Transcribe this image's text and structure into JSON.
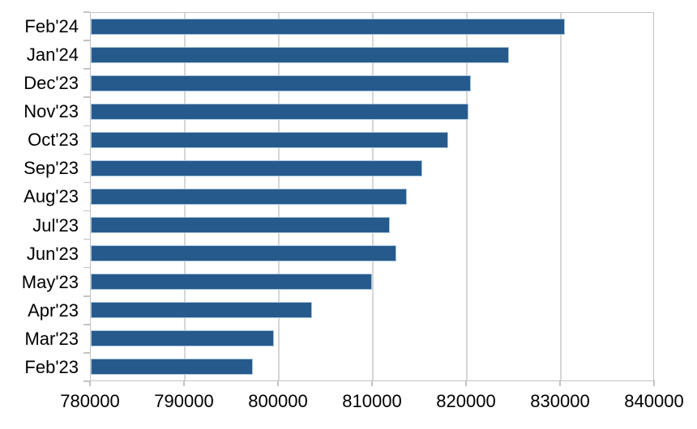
{
  "chart_data": {
    "type": "bar",
    "orientation": "horizontal",
    "title": "",
    "xlabel": "",
    "ylabel": "",
    "categories": [
      "Feb'24",
      "Jan'24",
      "Dec'23",
      "Nov'23",
      "Oct'23",
      "Sep'23",
      "Aug'23",
      "Jul'23",
      "Jun'23",
      "May'23",
      "Apr'23",
      "Mar'23",
      "Feb'23"
    ],
    "values": [
      830400,
      824500,
      820400,
      820200,
      818000,
      815300,
      813600,
      811800,
      812500,
      809900,
      803500,
      799500,
      797200
    ],
    "xlim": [
      780000,
      840000
    ],
    "x_tick_labels": [
      "780000",
      "790000",
      "800000",
      "810000",
      "820000",
      "830000",
      "840000"
    ],
    "grid": "vertical-gridlines-on",
    "legend": "none",
    "colors": {
      "bar_fill": "#265A8C",
      "bar_border": "#A9C6E0",
      "gridline": "#D6D6D6",
      "axis": "#C3C3C3",
      "text": "#000000",
      "background": "#FFFFFF"
    }
  }
}
